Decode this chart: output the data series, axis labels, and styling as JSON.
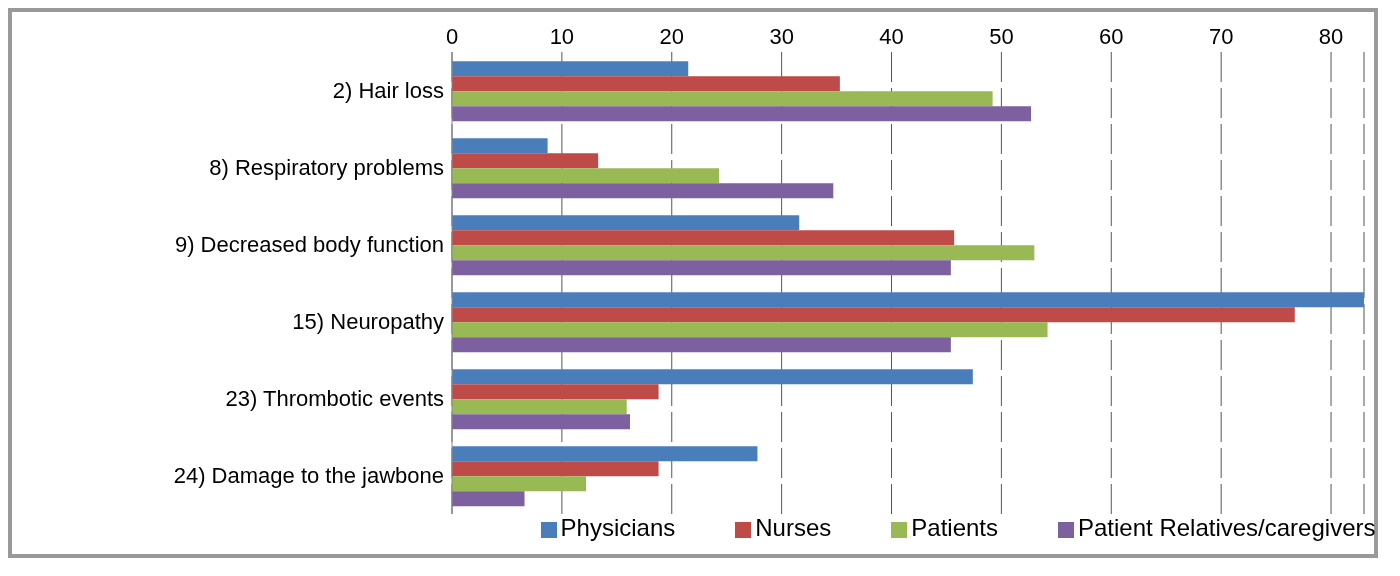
{
  "chart_data": {
    "type": "bar",
    "orientation": "horizontal",
    "categories": [
      "2) Hair loss",
      "8) Respiratory problems",
      "9) Decreased body function",
      "15) Neuropathy",
      "23) Thrombotic events",
      "24) Damage to the jawbone"
    ],
    "series": [
      {
        "name": "Physicians",
        "color": "#4a7ebb",
        "values": [
          21.5,
          8.7,
          31.6,
          83,
          47.4,
          27.8
        ]
      },
      {
        "name": "Nurses",
        "color": "#be4b48",
        "values": [
          35.3,
          13.3,
          45.7,
          76.7,
          18.8,
          18.8
        ]
      },
      {
        "name": "Patients",
        "color": "#98b954",
        "values": [
          49.2,
          24.3,
          53,
          54.2,
          15.9,
          12.2
        ]
      },
      {
        "name": "Patient Relatives/caregivers",
        "color": "#7d60a0",
        "values": [
          52.7,
          34.7,
          45.4,
          45.4,
          16.2,
          6.6
        ]
      }
    ],
    "xlim": [
      0,
      83
    ],
    "xticks": [
      0,
      10,
      20,
      30,
      40,
      50,
      60,
      70,
      80
    ],
    "grid": "x",
    "legend": "bottom"
  }
}
